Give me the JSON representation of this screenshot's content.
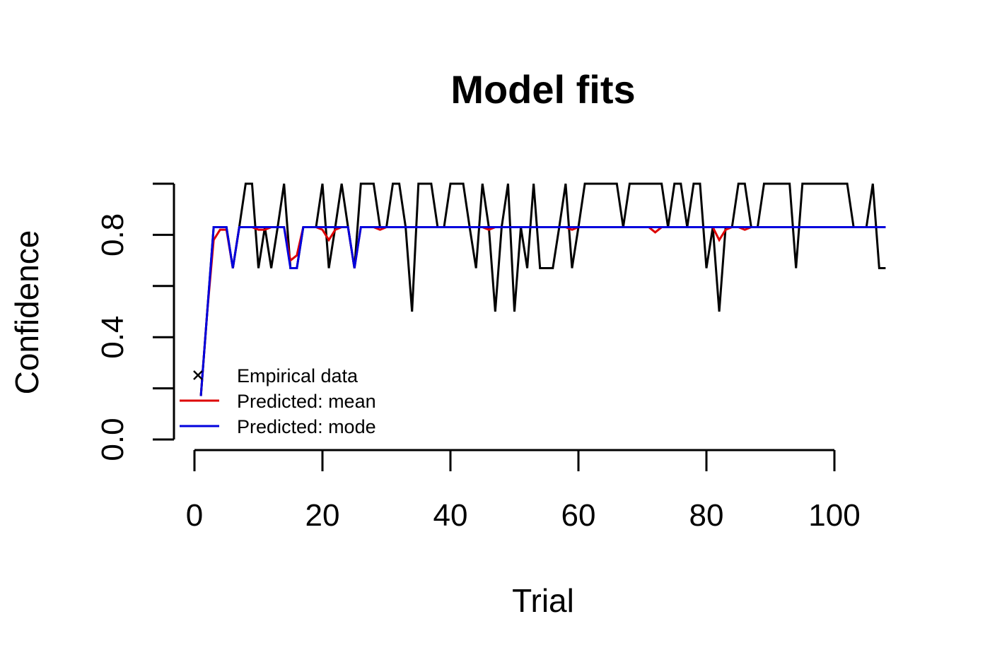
{
  "chart_data": {
    "type": "line",
    "title": "Model fits",
    "xlabel": "Trial",
    "ylabel": "Confidence",
    "x_ticks": [
      0,
      20,
      40,
      60,
      80,
      100
    ],
    "x_tick_labels": [
      "0",
      "20",
      "40",
      "60",
      "80",
      "100"
    ],
    "y_ticks": [
      0.0,
      0.2,
      0.4,
      0.6,
      0.8,
      1.0
    ],
    "y_tick_labels": [
      "0.0",
      "",
      "0.4",
      "",
      "0.8",
      ""
    ],
    "xlim": [
      1,
      108
    ],
    "ylim": [
      0.0,
      1.0
    ],
    "grid": false,
    "legend": {
      "position": "bottom-left",
      "entries": [
        {
          "label": "Empirical data",
          "symbol": "x",
          "color": "#000000"
        },
        {
          "label": "Predicted: mean",
          "symbol": "line",
          "color": "#dd0000"
        },
        {
          "label": "Predicted: mode",
          "symbol": "line",
          "color": "#0000dd"
        }
      ]
    },
    "series": [
      {
        "name": "Empirical data",
        "color": "#000000",
        "x": [
          1,
          2,
          3,
          4,
          5,
          6,
          7,
          8,
          9,
          10,
          11,
          12,
          13,
          14,
          15,
          16,
          17,
          18,
          19,
          20,
          21,
          22,
          23,
          24,
          25,
          26,
          27,
          28,
          29,
          30,
          31,
          32,
          33,
          34,
          35,
          36,
          37,
          38,
          39,
          40,
          41,
          42,
          43,
          44,
          45,
          46,
          47,
          48,
          49,
          50,
          51,
          52,
          53,
          54,
          55,
          56,
          57,
          58,
          59,
          60,
          61,
          62,
          63,
          64,
          65,
          66,
          67,
          68,
          69,
          70,
          71,
          72,
          73,
          74,
          75,
          76,
          77,
          78,
          79,
          80,
          81,
          82,
          83,
          84,
          85,
          86,
          87,
          88,
          89,
          90,
          91,
          92,
          93,
          94,
          95,
          96,
          97,
          98,
          99,
          100,
          101,
          102,
          103,
          104,
          105,
          106,
          107,
          108
        ],
        "y": [
          0.17,
          0.5,
          0.83,
          0.83,
          0.83,
          0.67,
          0.83,
          1.0,
          1.0,
          0.67,
          0.83,
          0.67,
          0.83,
          1.0,
          0.67,
          0.67,
          0.83,
          0.83,
          0.83,
          1.0,
          0.67,
          0.83,
          1.0,
          0.83,
          0.67,
          1.0,
          1.0,
          1.0,
          0.83,
          0.83,
          1.0,
          1.0,
          0.83,
          0.5,
          1.0,
          1.0,
          1.0,
          0.83,
          0.83,
          1.0,
          1.0,
          1.0,
          0.83,
          0.67,
          1.0,
          0.83,
          0.5,
          0.83,
          1.0,
          0.5,
          0.83,
          0.67,
          1.0,
          0.67,
          0.67,
          0.67,
          0.83,
          1.0,
          0.67,
          0.83,
          1.0,
          1.0,
          1.0,
          1.0,
          1.0,
          1.0,
          0.83,
          1.0,
          1.0,
          1.0,
          1.0,
          1.0,
          1.0,
          0.83,
          1.0,
          1.0,
          0.83,
          1.0,
          1.0,
          0.67,
          0.83,
          0.5,
          0.83,
          0.83,
          1.0,
          1.0,
          0.83,
          0.83,
          1.0,
          1.0,
          1.0,
          1.0,
          1.0,
          0.67,
          1.0,
          1.0,
          1.0,
          1.0,
          1.0,
          1.0,
          1.0,
          1.0,
          0.83,
          0.83,
          0.83,
          1.0,
          0.67,
          0.67
        ]
      },
      {
        "name": "Predicted: mean",
        "color": "#dd0000",
        "x": [
          1,
          2,
          3,
          4,
          5,
          6,
          7,
          8,
          9,
          10,
          11,
          12,
          13,
          14,
          15,
          16,
          17,
          18,
          19,
          20,
          21,
          22,
          23,
          24,
          25,
          26,
          27,
          28,
          29,
          30,
          31,
          32,
          33,
          34,
          35,
          36,
          37,
          38,
          39,
          40,
          41,
          42,
          43,
          44,
          45,
          46,
          47,
          48,
          49,
          50,
          51,
          52,
          53,
          54,
          55,
          56,
          57,
          58,
          59,
          60,
          61,
          62,
          63,
          64,
          65,
          66,
          67,
          68,
          69,
          70,
          71,
          72,
          73,
          74,
          75,
          76,
          77,
          78,
          79,
          80,
          81,
          82,
          83,
          84,
          85,
          86,
          87,
          88,
          89,
          90,
          91,
          92,
          93,
          94,
          95,
          96,
          97,
          98,
          99,
          100,
          101,
          102,
          103,
          104,
          105,
          106,
          107,
          108
        ],
        "y": [
          0.17,
          0.5,
          0.78,
          0.82,
          0.82,
          0.67,
          0.83,
          0.83,
          0.83,
          0.82,
          0.82,
          0.83,
          0.83,
          0.83,
          0.7,
          0.72,
          0.83,
          0.83,
          0.83,
          0.82,
          0.78,
          0.82,
          0.83,
          0.83,
          0.67,
          0.83,
          0.83,
          0.83,
          0.82,
          0.83,
          0.83,
          0.83,
          0.83,
          0.83,
          0.83,
          0.83,
          0.83,
          0.83,
          0.83,
          0.83,
          0.83,
          0.83,
          0.83,
          0.83,
          0.83,
          0.82,
          0.83,
          0.83,
          0.83,
          0.83,
          0.83,
          0.83,
          0.83,
          0.83,
          0.83,
          0.83,
          0.83,
          0.83,
          0.82,
          0.83,
          0.83,
          0.83,
          0.83,
          0.83,
          0.83,
          0.83,
          0.83,
          0.83,
          0.83,
          0.83,
          0.83,
          0.81,
          0.83,
          0.83,
          0.83,
          0.83,
          0.83,
          0.83,
          0.83,
          0.83,
          0.83,
          0.78,
          0.82,
          0.83,
          0.83,
          0.82,
          0.83,
          0.83,
          0.83,
          0.83,
          0.83,
          0.83,
          0.83,
          0.83,
          0.83,
          0.83,
          0.83,
          0.83,
          0.83,
          0.83,
          0.83,
          0.83,
          0.83,
          0.83,
          0.83,
          0.83,
          0.83,
          0.83
        ]
      },
      {
        "name": "Predicted: mode",
        "color": "#0000dd",
        "x": [
          1,
          2,
          3,
          4,
          5,
          6,
          7,
          8,
          9,
          10,
          11,
          12,
          13,
          14,
          15,
          16,
          17,
          18,
          19,
          20,
          21,
          22,
          23,
          24,
          25,
          26,
          27,
          28,
          29,
          30,
          31,
          32,
          33,
          34,
          35,
          36,
          37,
          38,
          39,
          40,
          41,
          42,
          43,
          44,
          45,
          46,
          47,
          48,
          49,
          50,
          51,
          52,
          53,
          54,
          55,
          56,
          57,
          58,
          59,
          60,
          61,
          62,
          63,
          64,
          65,
          66,
          67,
          68,
          69,
          70,
          71,
          72,
          73,
          74,
          75,
          76,
          77,
          78,
          79,
          80,
          81,
          82,
          83,
          84,
          85,
          86,
          87,
          88,
          89,
          90,
          91,
          92,
          93,
          94,
          95,
          96,
          97,
          98,
          99,
          100,
          101,
          102,
          103,
          104,
          105,
          106,
          107,
          108
        ],
        "y": [
          0.17,
          0.5,
          0.83,
          0.83,
          0.83,
          0.67,
          0.83,
          0.83,
          0.83,
          0.83,
          0.83,
          0.83,
          0.83,
          0.83,
          0.67,
          0.67,
          0.83,
          0.83,
          0.83,
          0.83,
          0.83,
          0.83,
          0.83,
          0.83,
          0.67,
          0.83,
          0.83,
          0.83,
          0.83,
          0.83,
          0.83,
          0.83,
          0.83,
          0.83,
          0.83,
          0.83,
          0.83,
          0.83,
          0.83,
          0.83,
          0.83,
          0.83,
          0.83,
          0.83,
          0.83,
          0.83,
          0.83,
          0.83,
          0.83,
          0.83,
          0.83,
          0.83,
          0.83,
          0.83,
          0.83,
          0.83,
          0.83,
          0.83,
          0.83,
          0.83,
          0.83,
          0.83,
          0.83,
          0.83,
          0.83,
          0.83,
          0.83,
          0.83,
          0.83,
          0.83,
          0.83,
          0.83,
          0.83,
          0.83,
          0.83,
          0.83,
          0.83,
          0.83,
          0.83,
          0.83,
          0.83,
          0.83,
          0.83,
          0.83,
          0.83,
          0.83,
          0.83,
          0.83,
          0.83,
          0.83,
          0.83,
          0.83,
          0.83,
          0.83,
          0.83,
          0.83,
          0.83,
          0.83,
          0.83,
          0.83,
          0.83,
          0.83,
          0.83,
          0.83,
          0.83,
          0.83,
          0.83,
          0.83
        ]
      }
    ]
  }
}
